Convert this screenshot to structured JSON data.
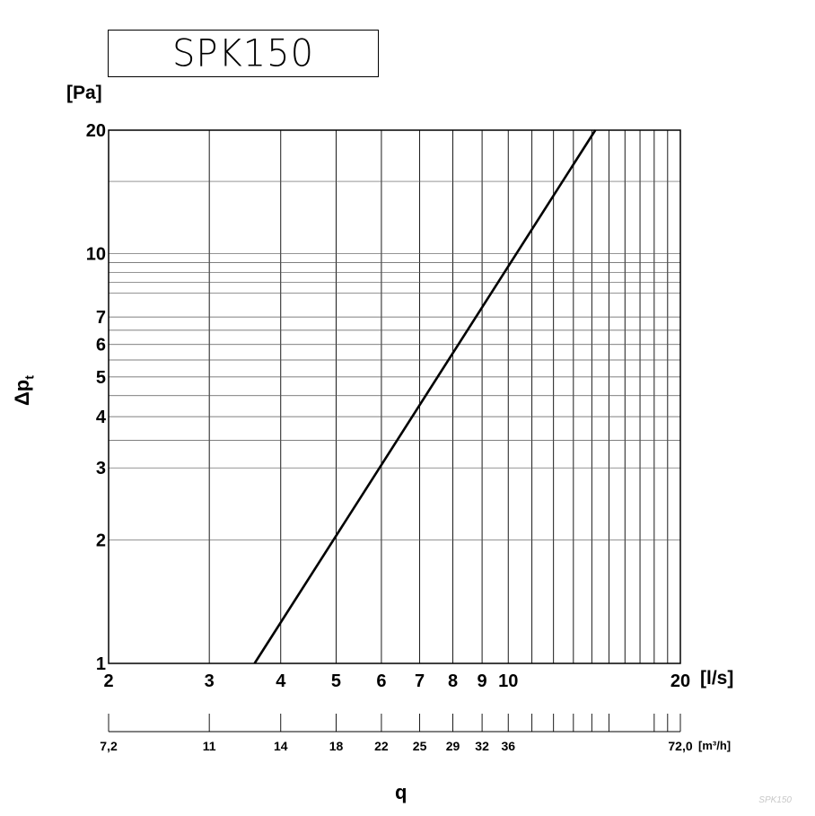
{
  "title": "SPK150",
  "watermark": "SPK150",
  "chart_data": {
    "type": "line",
    "x_scale": "log",
    "y_scale": "log",
    "xlim": [
      2,
      20
    ],
    "ylim": [
      1,
      20
    ],
    "x_unit": "[l/s]",
    "y_unit": "[Pa]",
    "xlabel": "q",
    "ylabel_main": "Δp",
    "ylabel_sub": "t",
    "x_ticks": [
      2,
      3,
      4,
      5,
      6,
      7,
      8,
      9,
      10,
      20
    ],
    "x_grid": [
      2,
      3,
      4,
      5,
      6,
      7,
      8,
      9,
      10,
      11,
      12,
      13,
      14,
      15,
      16,
      17,
      18,
      19,
      20
    ],
    "y_ticks": [
      1,
      2,
      3,
      4,
      5,
      6,
      7,
      10,
      20
    ],
    "y_grid": [
      1,
      2,
      3,
      3.5,
      4,
      4.5,
      5,
      5.5,
      6,
      6.5,
      7,
      8,
      8.5,
      9,
      9.5,
      10,
      15,
      20
    ],
    "series": [
      {
        "x": [
          3.6,
          14.2
        ],
        "y": [
          1,
          20
        ]
      }
    ],
    "secondary_axis": {
      "unit": "[m³/h]",
      "ticks": [
        {
          "label": "7,2",
          "at": 2
        },
        {
          "label": "11",
          "at": 3
        },
        {
          "label": "14",
          "at": 4
        },
        {
          "label": "18",
          "at": 5
        },
        {
          "label": "22",
          "at": 6
        },
        {
          "label": "25",
          "at": 7
        },
        {
          "label": "29",
          "at": 8
        },
        {
          "label": "32",
          "at": 9
        },
        {
          "label": "36",
          "at": 10
        },
        {
          "label": "",
          "at": 11
        },
        {
          "label": "",
          "at": 12
        },
        {
          "label": "",
          "at": 13
        },
        {
          "label": "",
          "at": 14
        },
        {
          "label": "",
          "at": 15
        },
        {
          "label": "",
          "at": 18
        },
        {
          "label": "",
          "at": 19
        },
        {
          "label": "72,0",
          "at": 20
        }
      ]
    }
  }
}
